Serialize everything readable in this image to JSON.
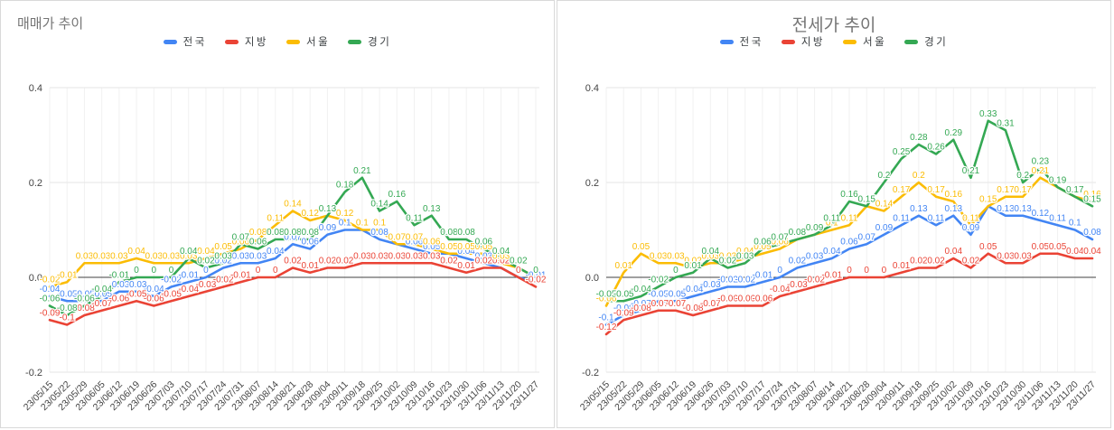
{
  "colors": {
    "nationwide": "#4285F4",
    "regional": "#EA4335",
    "seoul": "#FBBC04",
    "gyeonggi": "#34A853",
    "gridline": "#e6e6e6",
    "vertical_gridline": "#f1f1f1",
    "zero_axis": "#424242",
    "tick_text": "#444444",
    "title_text": "#757575"
  },
  "chart_data": [
    {
      "type": "line",
      "title": "매매가 추이",
      "title_align": "left",
      "legend_position": "top",
      "grid": true,
      "data_labels": true,
      "ylim": [
        -0.2,
        0.4
      ],
      "y_ticks": [
        0.4,
        0.2,
        0.0,
        -0.2
      ],
      "categories": [
        "23/05/15",
        "23/05/22",
        "23/05/29",
        "23/06/05",
        "23/06/12",
        "23/06/19",
        "23/06/26",
        "23/07/03",
        "23/07/10",
        "23/07/17",
        "23/07/24",
        "23/07/31",
        "23/08/07",
        "23/08/14",
        "23/08/21",
        "23/08/28",
        "23/09/04",
        "23/09/11",
        "23/09/18",
        "23/09/25",
        "23/10/02",
        "23/10/09",
        "23/10/16",
        "23/10/23",
        "23/10/30",
        "23/11/06",
        "23/11/13",
        "23/11/20",
        "23/11/27"
      ],
      "series": [
        {
          "name": "전국",
          "key": "nationwide",
          "values": [
            -0.04,
            -0.05,
            -0.05,
            -0.05,
            -0.03,
            -0.03,
            -0.04,
            -0.02,
            -0.01,
            0,
            0.02,
            0.03,
            0.03,
            0.04,
            0.07,
            0.06,
            0.09,
            0.1,
            0.1,
            0.08,
            0.07,
            0.06,
            0.05,
            0.05,
            0.04,
            0.03,
            0.02,
            0,
            -0.01
          ]
        },
        {
          "name": "지방",
          "key": "regional",
          "values": [
            -0.09,
            -0.1,
            -0.08,
            -0.07,
            -0.06,
            -0.05,
            -0.06,
            -0.05,
            -0.04,
            -0.03,
            -0.02,
            -0.01,
            0,
            0,
            0.02,
            0.01,
            0.02,
            0.02,
            0.03,
            0.03,
            0.03,
            0.03,
            0.03,
            0.02,
            0.01,
            0.02,
            0.02,
            0,
            -0.02
          ]
        },
        {
          "name": "서울",
          "key": "seoul",
          "values": [
            -0.02,
            -0.01,
            0.03,
            0.03,
            0.03,
            0.04,
            0.03,
            0.03,
            0.03,
            0.04,
            0.05,
            0.06,
            0.08,
            0.11,
            0.14,
            0.12,
            0.13,
            0.12,
            0.1,
            0.1,
            0.07,
            0.07,
            0.06,
            0.05,
            0.05,
            0.05,
            0.03,
            0.02,
            0
          ]
        },
        {
          "name": "경기",
          "key": "gyeonggi",
          "values": [
            -0.06,
            -0.08,
            -0.06,
            -0.04,
            -0.01,
            0,
            0,
            0,
            0.04,
            0.02,
            0.03,
            0.07,
            0.06,
            0.08,
            0.08,
            0.08,
            0.13,
            0.18,
            0.21,
            0.14,
            0.16,
            0.11,
            0.13,
            0.08,
            0.08,
            0.06,
            0.04,
            0.02,
            0
          ]
        }
      ]
    },
    {
      "type": "line",
      "title": "전세가 추이",
      "title_align": "center",
      "legend_position": "top",
      "grid": true,
      "data_labels": true,
      "ylim": [
        -0.2,
        0.4
      ],
      "y_ticks": [
        0.4,
        0.2,
        0.0,
        -0.2
      ],
      "categories": [
        "23/05/15",
        "23/05/22",
        "23/05/29",
        "23/06/05",
        "23/06/12",
        "23/06/19",
        "23/06/26",
        "23/07/03",
        "23/07/10",
        "23/07/17",
        "23/07/24",
        "23/07/31",
        "23/08/07",
        "23/08/14",
        "23/08/21",
        "23/08/28",
        "23/09/04",
        "23/09/11",
        "23/09/18",
        "23/09/25",
        "23/10/02",
        "23/10/09",
        "23/10/16",
        "23/10/23",
        "23/10/30",
        "23/11/06",
        "23/11/13",
        "23/11/20",
        "23/11/27"
      ],
      "series": [
        {
          "name": "전국",
          "key": "nationwide",
          "values": [
            -0.1,
            -0.08,
            -0.07,
            -0.05,
            -0.05,
            -0.04,
            -0.03,
            -0.02,
            -0.02,
            -0.01,
            0,
            0.02,
            0.03,
            0.04,
            0.06,
            0.07,
            0.09,
            0.11,
            0.13,
            0.11,
            0.13,
            0.09,
            0.15,
            0.13,
            0.13,
            0.12,
            0.11,
            0.1,
            0.08
          ]
        },
        {
          "name": "지방",
          "key": "regional",
          "values": [
            -0.12,
            -0.09,
            -0.08,
            -0.07,
            -0.07,
            -0.08,
            -0.07,
            -0.06,
            -0.06,
            -0.06,
            -0.04,
            -0.03,
            -0.02,
            -0.01,
            0,
            0,
            0,
            0.01,
            0.02,
            0.02,
            0.04,
            0.02,
            0.05,
            0.03,
            0.03,
            0.05,
            0.05,
            0.04,
            0.04
          ]
        },
        {
          "name": "서울",
          "key": "seoul",
          "values": [
            -0.06,
            0.01,
            0.05,
            0.03,
            0.03,
            0.02,
            0.03,
            0.03,
            0.04,
            0.05,
            0.06,
            0.08,
            0.09,
            0.1,
            0.11,
            0.15,
            0.14,
            0.17,
            0.2,
            0.17,
            0.16,
            0.11,
            0.15,
            0.17,
            0.17,
            0.21,
            0.19,
            0.17,
            0.16
          ]
        },
        {
          "name": "경기",
          "key": "gyeonggi",
          "values": [
            -0.05,
            -0.05,
            -0.04,
            -0.02,
            0,
            0.01,
            0.04,
            0.02,
            0.03,
            0.06,
            0.07,
            0.08,
            0.09,
            0.11,
            0.16,
            0.15,
            0.2,
            0.25,
            0.28,
            0.26,
            0.29,
            0.21,
            0.33,
            0.31,
            0.2,
            0.23,
            0.19,
            0.17,
            0.15
          ]
        }
      ]
    }
  ]
}
